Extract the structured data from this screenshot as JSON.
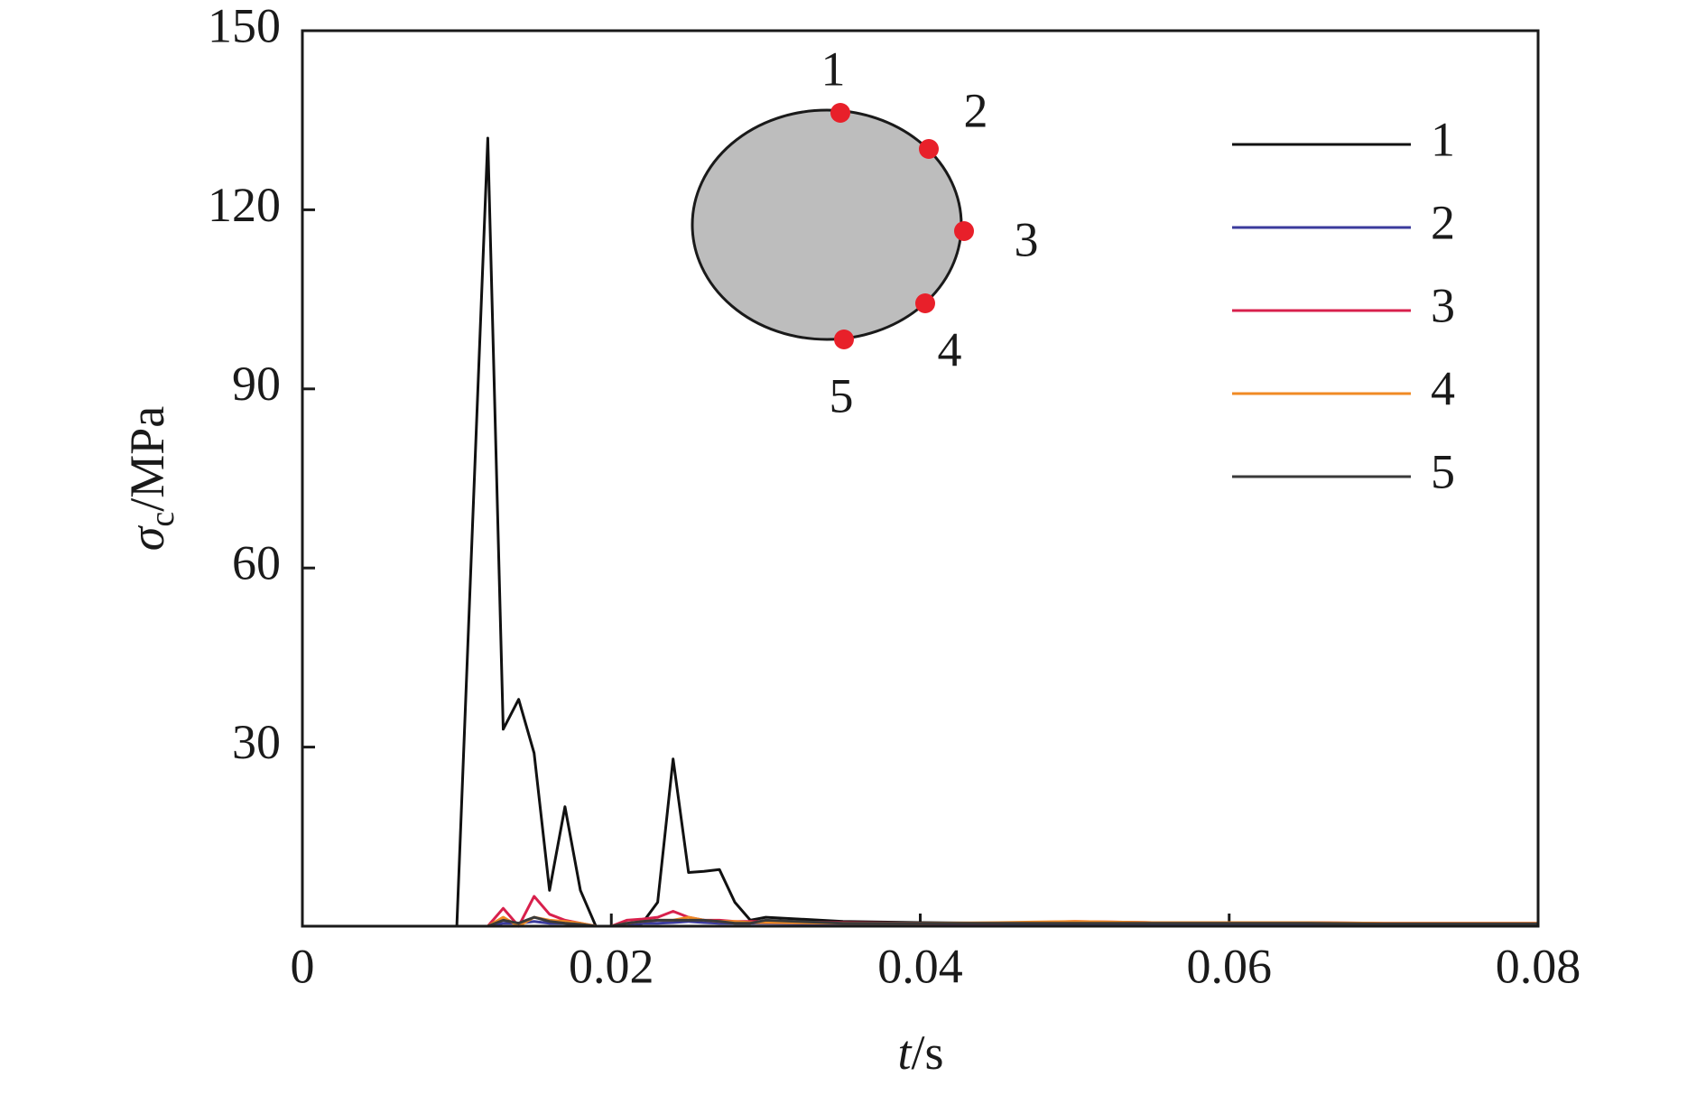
{
  "chart_data": {
    "type": "line",
    "xlabel": {
      "symbol": "t",
      "unit": "/s"
    },
    "ylabel": {
      "symbol": "σ",
      "subscript": "c",
      "unit": "/MPa"
    },
    "x": [
      0,
      0.009,
      0.01,
      0.011,
      0.012,
      0.013,
      0.014,
      0.015,
      0.016,
      0.017,
      0.018,
      0.019,
      0.02,
      0.021,
      0.022,
      0.023,
      0.024,
      0.025,
      0.026,
      0.027,
      0.028,
      0.029,
      0.03,
      0.035,
      0.04,
      0.045,
      0.05,
      0.055,
      0.06,
      0.065,
      0.07,
      0.075,
      0.08
    ],
    "series": [
      {
        "name": "1",
        "color": "#111111",
        "values": [
          0,
          0,
          0,
          66,
          132,
          33,
          38,
          29,
          6,
          20,
          6,
          0,
          0,
          0.3,
          0.5,
          4,
          28,
          9,
          9.2,
          9.5,
          4,
          1,
          1.5,
          0.8,
          0.6,
          0.5,
          0.5,
          0.5,
          0.5,
          0.5,
          0.4,
          0.4,
          0.4
        ]
      },
      {
        "name": "2",
        "color": "#3b3b9c",
        "values": [
          0,
          0,
          0,
          0,
          0,
          0.5,
          0.5,
          0.8,
          0.5,
          0.5,
          0.3,
          0,
          0,
          0.3,
          0.5,
          0.5,
          0.6,
          0.8,
          0.6,
          0.5,
          0.5,
          0.5,
          0.5,
          0.4,
          0.4,
          0.4,
          0.4,
          0.3,
          0.3,
          0.3,
          0.3,
          0.3,
          0.3
        ]
      },
      {
        "name": "3",
        "color": "#d8204c",
        "values": [
          0,
          0,
          0,
          0,
          0,
          3,
          0,
          5,
          2,
          1,
          0.5,
          0,
          0,
          1,
          1.2,
          1.5,
          2.5,
          1.5,
          1,
          1,
          0.8,
          0.8,
          0.8,
          0.6,
          0.5,
          0.5,
          0.8,
          0.6,
          0.6,
          0.6,
          0.5,
          0.5,
          0.5
        ]
      },
      {
        "name": "4",
        "color": "#f08a24",
        "values": [
          0,
          0,
          0,
          0,
          0,
          1.5,
          0,
          1.5,
          1,
          0.8,
          0.5,
          0,
          0,
          0.5,
          0.8,
          1,
          1,
          1.5,
          1,
          0.8,
          0.8,
          0.6,
          0.6,
          0.5,
          0.5,
          0.6,
          0.8,
          0.6,
          0.6,
          0.6,
          0.5,
          0.5,
          0.5
        ]
      },
      {
        "name": "5",
        "color": "#3a3a3a",
        "values": [
          0,
          0,
          0,
          0,
          0,
          1,
          0.5,
          1.5,
          0.8,
          0.5,
          0.3,
          0,
          0,
          0.5,
          0.8,
          1,
          1,
          1,
          1,
          0.8,
          0.5,
          0.5,
          1,
          0.5,
          0.5,
          0.5,
          0.5,
          0.5,
          0.5,
          0.5,
          0.4,
          0.4,
          0.4
        ]
      }
    ],
    "xlim": [
      0,
      0.08
    ],
    "xticks": [
      0,
      0.02,
      0.04,
      0.06,
      0.08
    ],
    "ylim": [
      0,
      150
    ],
    "yticks": [
      30,
      60,
      90,
      120,
      150
    ],
    "legend": "upper right",
    "inset": {
      "point_labels": [
        "1",
        "2",
        "3",
        "4",
        "5"
      ]
    }
  }
}
